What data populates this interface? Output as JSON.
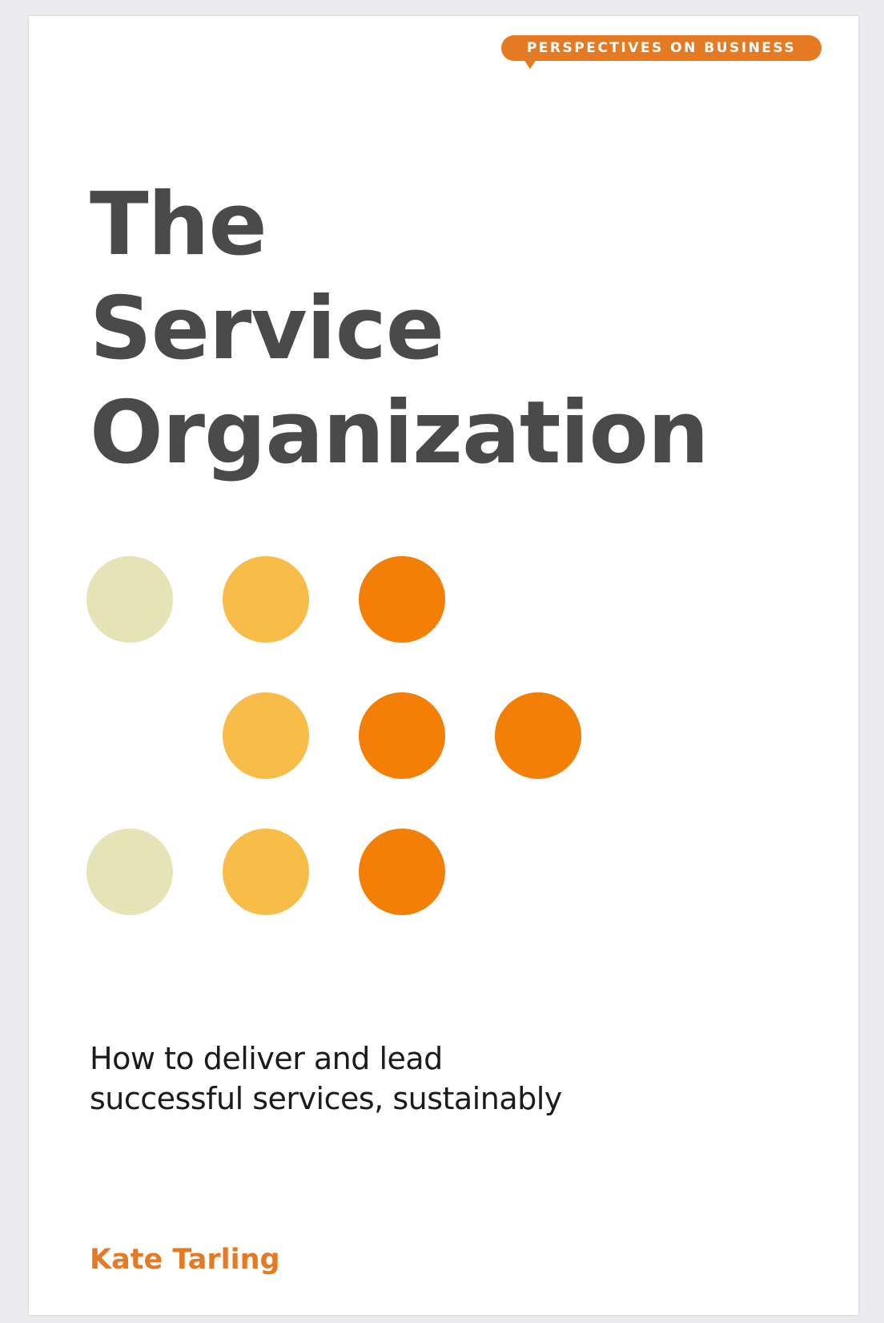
{
  "series": {
    "label": "PERSPECTIVES ON BUSINESS"
  },
  "title": {
    "line1": "The",
    "line2": "Service",
    "line3": "Organization"
  },
  "subtitle": {
    "line1": "How to deliver and lead",
    "line2": "successful services, sustainably"
  },
  "author": "Kate Tarling",
  "colors": {
    "accent_orange": "#f47f06",
    "mid_yellow": "#f8bd48",
    "pale_cream": "#e7e3b8",
    "title_gray": "#4a4a4a",
    "series_badge": "#e57a23"
  },
  "dot_pattern": [
    [
      "pale",
      "yellow",
      "orange",
      "none"
    ],
    [
      "none",
      "yellow",
      "orange",
      "orange"
    ],
    [
      "pale",
      "yellow",
      "orange",
      "none"
    ]
  ]
}
